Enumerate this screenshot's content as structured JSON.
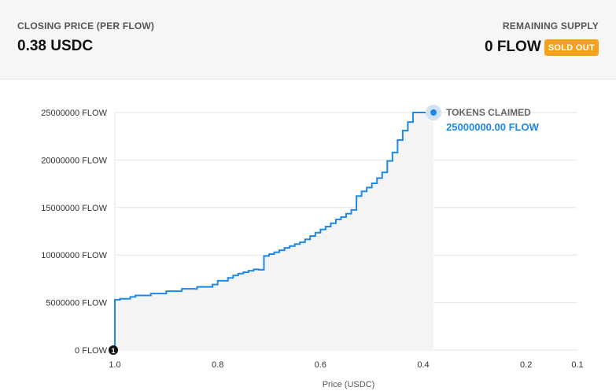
{
  "header": {
    "closing_price_label": "CLOSING PRICE (PER FLOW)",
    "closing_price_value": "0.38 USDC",
    "remaining_supply_label": "REMAINING SUPPLY",
    "remaining_supply_value": "0 FLOW",
    "status_badge": "SOLD OUT"
  },
  "colors": {
    "line": "#1e88e5",
    "area": "#f4f4f4",
    "badge": "#f4a21d",
    "grid": "#e6e6e6"
  },
  "chart_data": {
    "type": "line",
    "step": true,
    "xlabel": "Price (USDC)",
    "ylabel": "",
    "x_reversed": true,
    "xlim": [
      1.0,
      0.1
    ],
    "ylim": [
      0,
      25000000
    ],
    "x_ticks": [
      {
        "value": 1.0,
        "label": "1.0"
      },
      {
        "value": 0.8,
        "label": "0.8"
      },
      {
        "value": 0.6,
        "label": "0.6"
      },
      {
        "value": 0.4,
        "label": "0.4"
      },
      {
        "value": 0.2,
        "label": "0.2"
      },
      {
        "value": 0.1,
        "label": "0.1"
      }
    ],
    "y_ticks": [
      {
        "value": 0,
        "label": "0 FLOW"
      },
      {
        "value": 5000000,
        "label": "5000000 FLOW"
      },
      {
        "value": 10000000,
        "label": "10000000 FLOW"
      },
      {
        "value": 15000000,
        "label": "15000000 FLOW"
      },
      {
        "value": 20000000,
        "label": "20000000 FLOW"
      },
      {
        "value": 25000000,
        "label": "25000000 FLOW"
      }
    ],
    "grid": true,
    "start_marker": {
      "label": "1",
      "x": 1.0,
      "y": 0
    },
    "end_annotation": {
      "label": "TOKENS CLAIMED",
      "value": "25000000.00 FLOW",
      "x": 0.38,
      "y": 25000000
    },
    "series": [
      {
        "x": [
          1.0,
          0.99,
          0.97,
          0.96,
          0.93,
          0.9,
          0.87,
          0.84,
          0.81,
          0.8,
          0.78,
          0.77,
          0.76,
          0.75,
          0.74,
          0.73,
          0.72,
          0.71,
          0.7,
          0.69,
          0.68,
          0.67,
          0.66,
          0.65,
          0.64,
          0.63,
          0.62,
          0.61,
          0.6,
          0.59,
          0.58,
          0.57,
          0.56,
          0.55,
          0.54,
          0.53,
          0.52,
          0.51,
          0.5,
          0.49,
          0.48,
          0.47,
          0.46,
          0.45,
          0.44,
          0.43,
          0.42,
          0.41,
          0.4,
          0.39,
          0.38,
          0.38
        ],
        "y": [
          5300000,
          5400000,
          5600000,
          5750000,
          5950000,
          6200000,
          6450000,
          6650000,
          6900000,
          7300000,
          7600000,
          7850000,
          8050000,
          8200000,
          8350000,
          8500000,
          8450000,
          9900000,
          10100000,
          10300000,
          10500000,
          10750000,
          10950000,
          11150000,
          11350000,
          11650000,
          12000000,
          12350000,
          12700000,
          13000000,
          13350000,
          13750000,
          14000000,
          14350000,
          14750000,
          16200000,
          16700000,
          17100000,
          17550000,
          18100000,
          18700000,
          19900000,
          20800000,
          22100000,
          23100000,
          24000000,
          25000000,
          25000000,
          25000000,
          25000000,
          25000000,
          25000000
        ]
      }
    ]
  }
}
